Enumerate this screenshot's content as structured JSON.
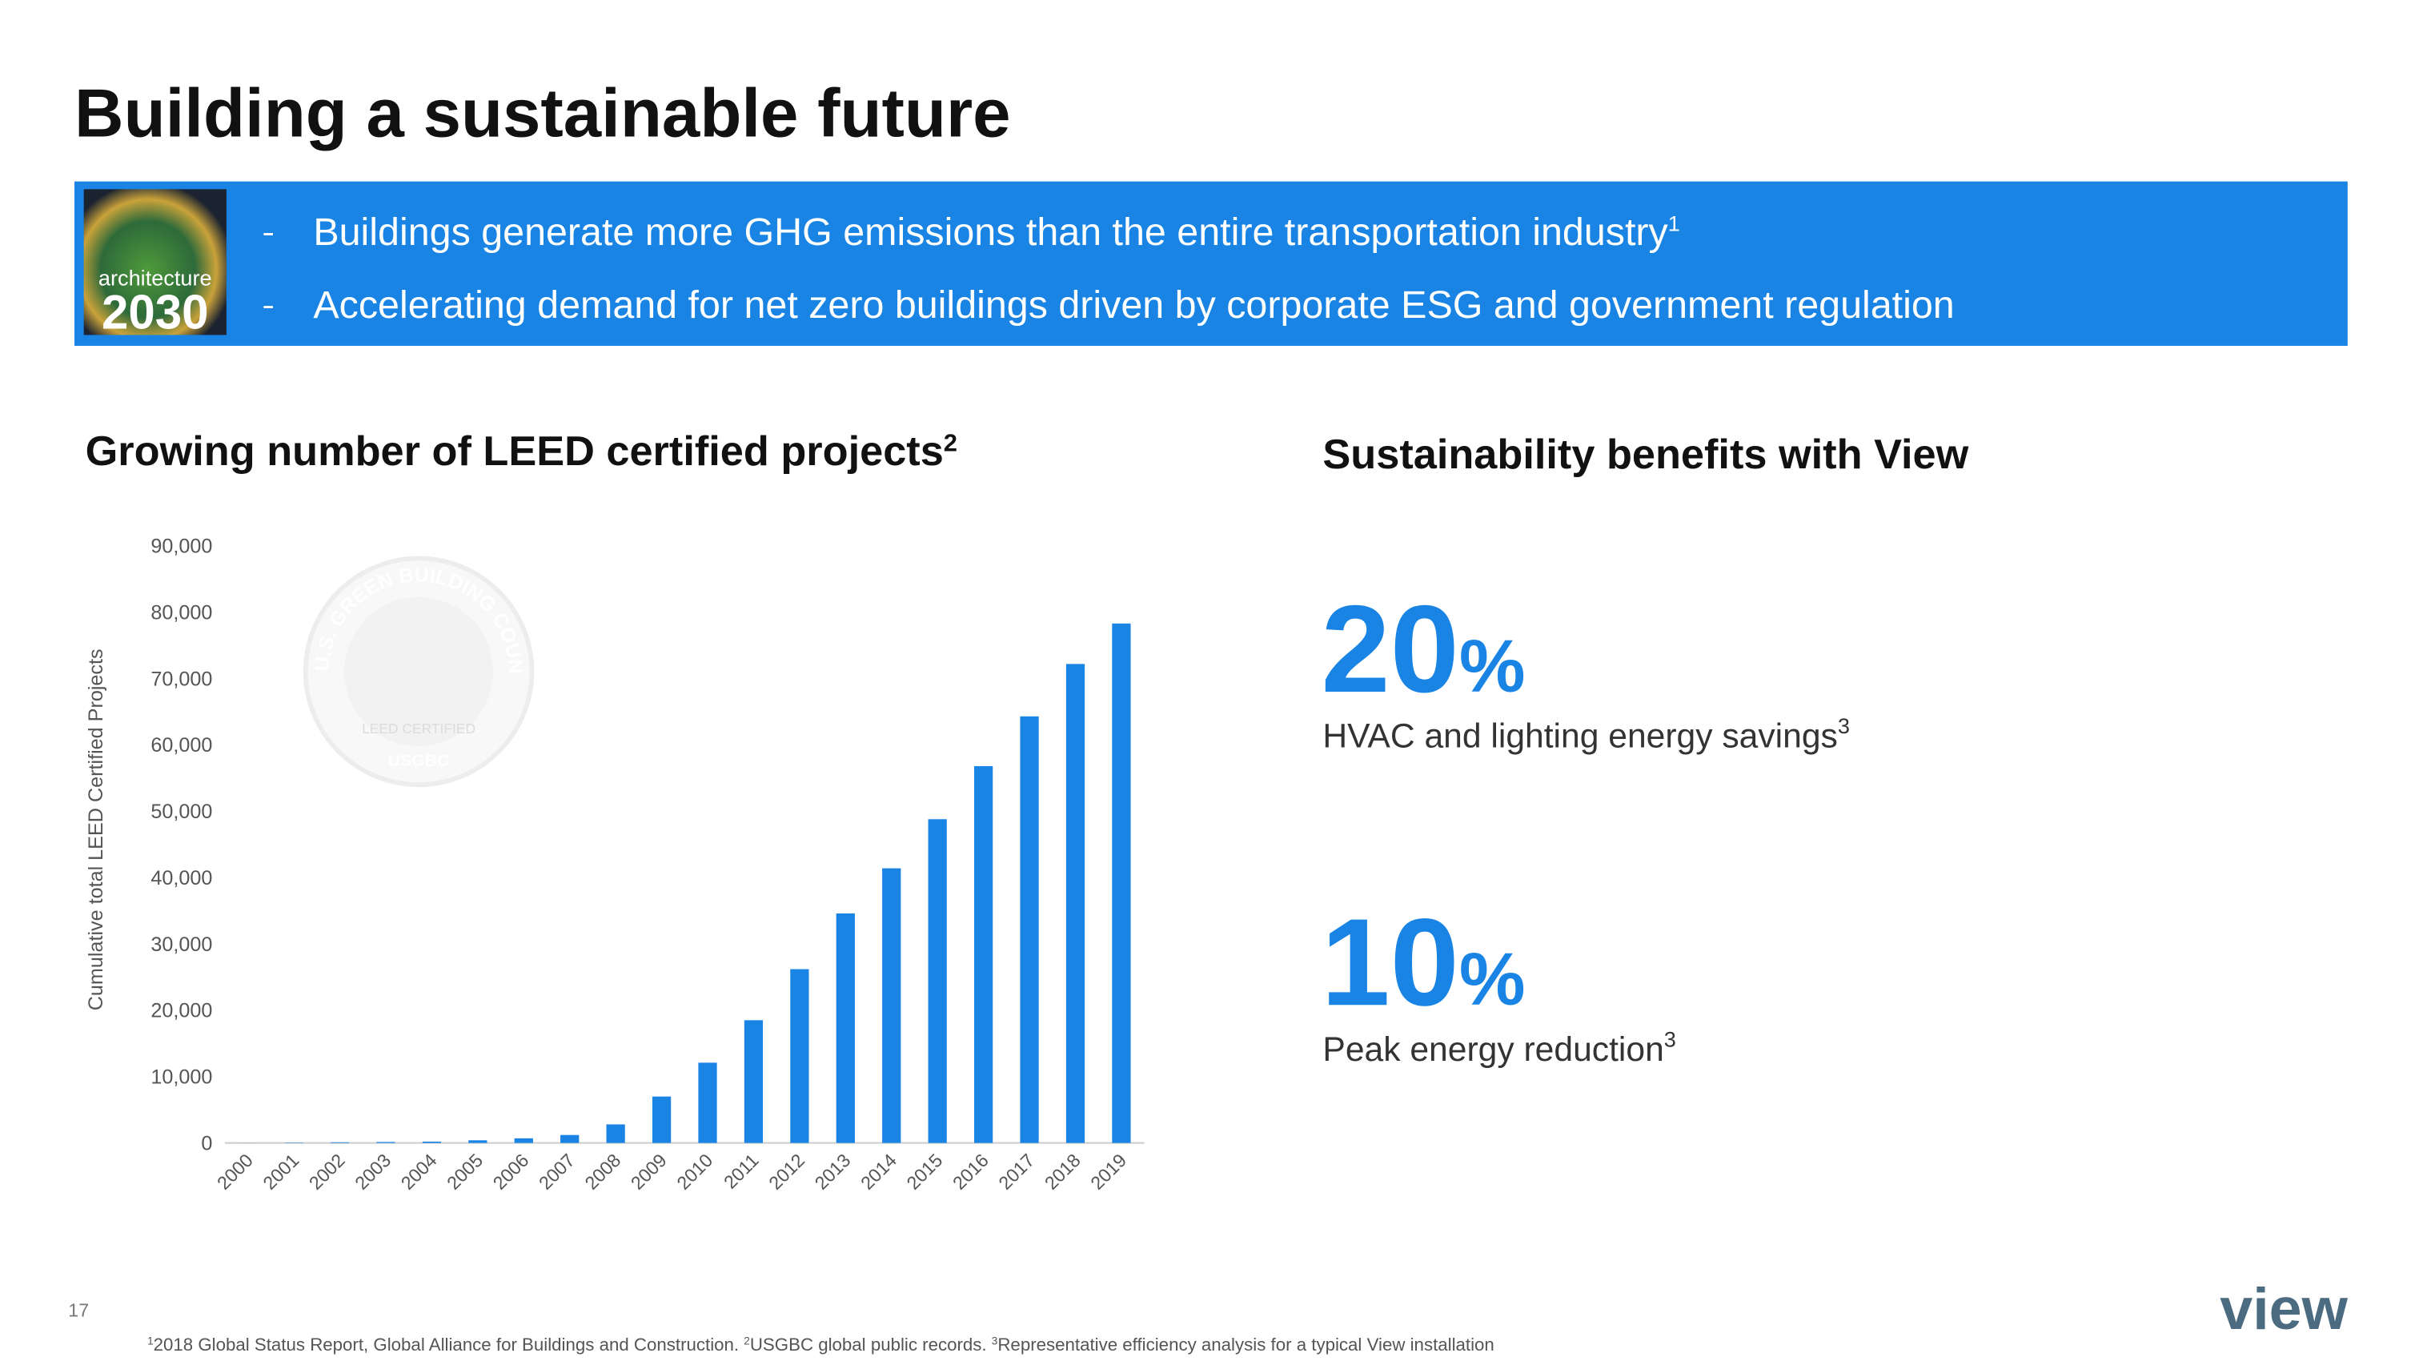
{
  "title": "Building a sustainable future",
  "logo": {
    "line1": "architecture",
    "line2": "2030"
  },
  "bullets": [
    {
      "text": "Buildings generate more GHG emissions than the entire transportation industry",
      "note": "1"
    },
    {
      "text": "Accelerating demand for net zero buildings driven by corporate ESG and government regulation"
    }
  ],
  "watermark": {
    "ring": "U.S. GREEN BUILDING COUNCIL",
    "badge": "LEED CERTIFIED",
    "bottom": "USGBC"
  },
  "chart_data": {
    "type": "bar",
    "title": "Growing number of LEED certified projects",
    "title_note": "2",
    "y_label": "Cumulative total LEED Certified Projects",
    "categories": [
      "2000",
      "2001",
      "2002",
      "2003",
      "2004",
      "2005",
      "2006",
      "2007",
      "2008",
      "2009",
      "2010",
      "2011",
      "2012",
      "2013",
      "2014",
      "2015",
      "2016",
      "2017",
      "2018",
      "2019"
    ],
    "values": [
      10,
      50,
      100,
      150,
      200,
      400,
      700,
      1200,
      2800,
      7000,
      12100,
      18500,
      26200,
      34600,
      41400,
      48800,
      56800,
      64300,
      72200,
      78300
    ],
    "color": "#1a84e5",
    "ylim": [
      0,
      90000
    ],
    "yticks": [
      0,
      {
        "value": 10000,
        "label": "10,000"
      },
      {
        "value": 20000,
        "label": "20,000"
      },
      {
        "value": 30000,
        "label": "30,000"
      },
      {
        "value": 40000,
        "label": "40,000"
      },
      {
        "value": 50000,
        "label": "50,000"
      },
      {
        "value": 60000,
        "label": "60,000"
      },
      {
        "value": 70000,
        "label": "70,000"
      },
      {
        "value": 80000,
        "label": "80,000"
      },
      {
        "value": 90000,
        "label": "90,000"
      }
    ],
    "grid": false
  },
  "benefits": {
    "title": "Sustainability benefits with View",
    "items": [
      {
        "value": 20,
        "unit": "%",
        "label": "HVAC and lighting energy savings",
        "note": "3"
      },
      {
        "value": 10,
        "unit": "%",
        "label": "Peak energy reduction",
        "note": "3"
      }
    ]
  },
  "page_number": "17",
  "brand": "view",
  "footnotes": [
    {
      "mark": "1",
      "text": "2018 Global Status Report, Global Alliance for Buildings and Construction. "
    },
    {
      "mark": "2",
      "text": "USGBC global public records. "
    },
    {
      "mark": "3",
      "text": "Representative efficiency analysis for a typical View installation"
    }
  ]
}
